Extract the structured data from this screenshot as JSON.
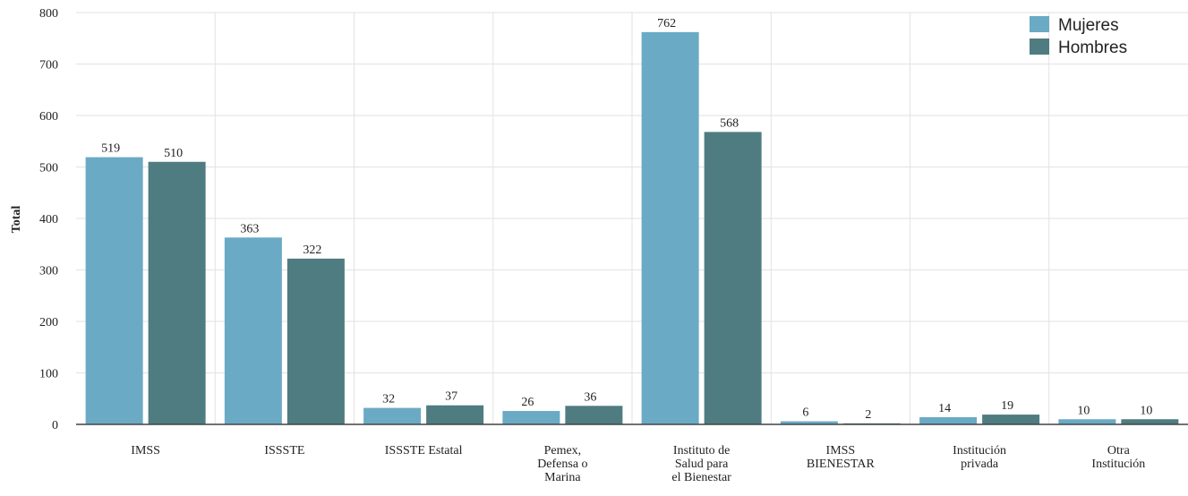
{
  "chart_data": {
    "type": "bar",
    "y_label": "Total",
    "categories": [
      "IMSS",
      "ISSSTE",
      "ISSSTE Estatal",
      "Pemex,\nDefensa o\nMarina",
      "Instituto de\nSalud para\nel Bienestar",
      "IMSS\nBIENESTAR",
      "Institución\nprivada",
      "Otra\nInstitución"
    ],
    "series": [
      {
        "name": "Mujeres",
        "color": "#6aaac4",
        "values": [
          519,
          363,
          32,
          26,
          762,
          6,
          14,
          10
        ]
      },
      {
        "name": "Hombres",
        "color": "#4f7c80",
        "values": [
          510,
          322,
          37,
          36,
          568,
          2,
          19,
          10
        ]
      }
    ],
    "ylim": [
      0,
      800
    ],
    "yticks": [
      0,
      100,
      200,
      300,
      400,
      500,
      600,
      700,
      800
    ],
    "grid": true,
    "legend": "top-right"
  }
}
